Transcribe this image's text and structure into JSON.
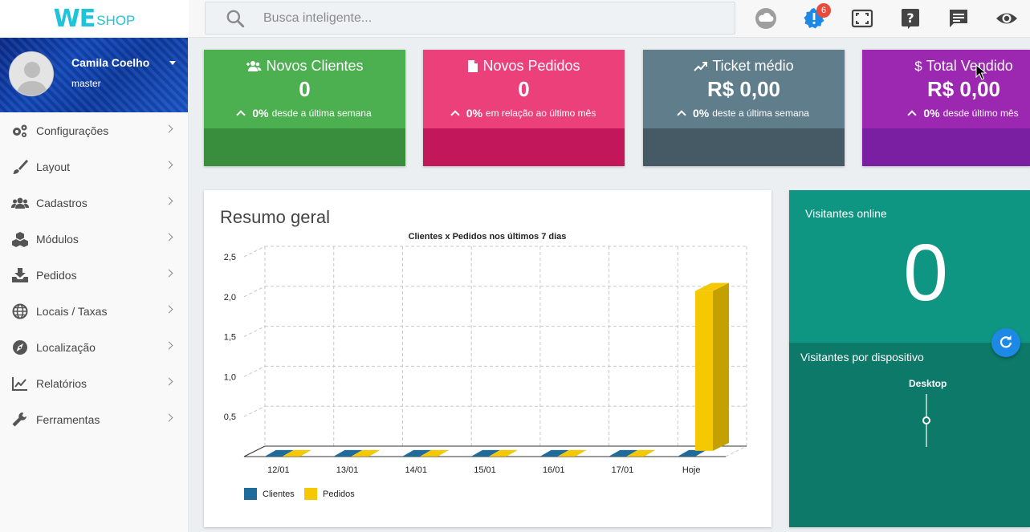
{
  "brand": {
    "logo_we": "WE",
    "logo_shop": "SHOP"
  },
  "search": {
    "placeholder": "Busca inteligente..."
  },
  "topbar": {
    "notification_count": "6"
  },
  "profile": {
    "name": "Camila Coelho",
    "role": "master"
  },
  "sidebar": {
    "items": [
      {
        "label": "Configurações",
        "icon": "gears-icon"
      },
      {
        "label": "Layout",
        "icon": "paintbrush-icon"
      },
      {
        "label": "Cadastros",
        "icon": "users-icon"
      },
      {
        "label": "Módulos",
        "icon": "cubes-icon"
      },
      {
        "label": "Pedidos",
        "icon": "inbox-download-icon"
      },
      {
        "label": "Locais / Taxas",
        "icon": "globe-icon"
      },
      {
        "label": "Localização",
        "icon": "compass-icon"
      },
      {
        "label": "Relatórios",
        "icon": "line-chart-icon"
      },
      {
        "label": "Ferramentas",
        "icon": "wrench-icon"
      }
    ]
  },
  "cards": [
    {
      "title": "Novos Clientes",
      "value": "0",
      "pct": "0%",
      "sub": "desde a última semana",
      "color_top": "#4caf50",
      "color_bottom": "#388e3c",
      "icon": "user-add-icon"
    },
    {
      "title": "Novos Pedidos",
      "value": "0",
      "pct": "0%",
      "sub": "em relação ao último mês",
      "color_top": "#ec407a",
      "color_bottom": "#c2185b",
      "icon": "document-icon"
    },
    {
      "title": "Ticket médio",
      "value": "R$ 0,00",
      "pct": "0%",
      "sub": "deste a última semana",
      "color_top": "#607d8b",
      "color_bottom": "#455a64",
      "icon": "trending-up-icon"
    },
    {
      "title": "Total Vendido",
      "value": "R$ 0,00",
      "pct": "0%",
      "sub": "desde último mês",
      "color_top": "#9c27b0",
      "color_bottom": "#7b1fa2",
      "icon": "dollar-icon"
    }
  ],
  "panel": {
    "title": "Resumo geral"
  },
  "chart_data": {
    "type": "bar",
    "title": "Clientes x Pedidos nos últimos 7 dias",
    "categories": [
      "12/01",
      "13/01",
      "14/01",
      "15/01",
      "16/01",
      "17/01",
      "Hoje"
    ],
    "series": [
      {
        "name": "Clientes",
        "color": "#1f6c9c",
        "values": [
          0,
          0,
          0,
          0,
          0,
          0,
          0
        ]
      },
      {
        "name": "Pedidos",
        "color": "#f5c800",
        "values": [
          0,
          0,
          0,
          0,
          0,
          0,
          2
        ]
      }
    ],
    "yticks": [
      "0,5",
      "1,0",
      "1,5",
      "2,0",
      "2,5"
    ],
    "ylim": [
      0,
      2.5
    ],
    "legend": "bottom-left",
    "grid": true
  },
  "visitors": {
    "online_label": "Visitantes online",
    "online_count": "0",
    "device_label": "Visitantes por dispositivo",
    "device_name": "Desktop"
  },
  "colors": {
    "accent": "#1ec4d8",
    "visitors_top": "#0f9682",
    "visitors_bottom": "#0d7a69",
    "alert_blue": "#1e88e5"
  }
}
